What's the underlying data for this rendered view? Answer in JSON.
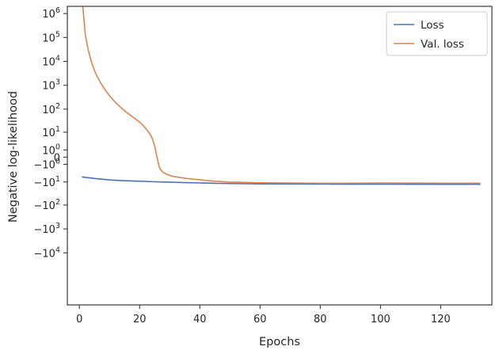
{
  "chart_data": {
    "type": "line",
    "title": "",
    "xlabel": "Epochs",
    "ylabel": "Negative log-likelihood",
    "xlim": [
      -4,
      137
    ],
    "xticks": [
      0,
      20,
      40,
      60,
      80,
      100,
      120
    ],
    "xtick_labels": [
      "0",
      "20",
      "40",
      "60",
      "80",
      "100",
      "120"
    ],
    "yscale": "symlog",
    "ylim": [
      -1500000,
      2000000
    ],
    "yticks": [
      {
        "value": 1000000,
        "base": "10",
        "exp": "6"
      },
      {
        "value": 100000,
        "base": "10",
        "exp": "5"
      },
      {
        "value": 10000,
        "base": "10",
        "exp": "4"
      },
      {
        "value": 1000,
        "base": "10",
        "exp": "3"
      },
      {
        "value": 100,
        "base": "10",
        "exp": "2"
      },
      {
        "value": 10,
        "base": "10",
        "exp": "1"
      },
      {
        "value": 1,
        "base": "10",
        "exp": "0"
      },
      {
        "value": 0,
        "base": "0",
        "exp": ""
      },
      {
        "value": -1,
        "base": "−10",
        "exp": "0"
      },
      {
        "value": -10,
        "base": "−10",
        "exp": "1"
      },
      {
        "value": -100,
        "base": "−10",
        "exp": "2"
      },
      {
        "value": -1000,
        "base": "−10",
        "exp": "3"
      },
      {
        "value": -10000,
        "base": "−10",
        "exp": "4"
      }
    ],
    "grid": false,
    "legend_position": "top-right",
    "series": [
      {
        "name": "Loss",
        "color": "#4c72b0",
        "x": [
          1,
          5,
          10,
          15,
          20,
          25,
          30,
          35,
          40,
          45,
          50,
          60,
          70,
          80,
          90,
          100,
          110,
          120,
          133
        ],
        "y": [
          -5.8,
          -6.8,
          -8.0,
          -8.7,
          -9.2,
          -9.7,
          -10.2,
          -10.6,
          -11.0,
          -11.4,
          -11.7,
          -12.1,
          -12.3,
          -12.4,
          -12.5,
          -12.5,
          -12.6,
          -12.6,
          -12.7
        ]
      },
      {
        "name": "Val. loss",
        "color": "#dd8452",
        "x": [
          1,
          2,
          3,
          4,
          5,
          6,
          7,
          8,
          9,
          10,
          12,
          14,
          16,
          18,
          20,
          21,
          22,
          23,
          24,
          25,
          25.5,
          26,
          26.5,
          27,
          27.5,
          28,
          29,
          30,
          31,
          32,
          34,
          36,
          38,
          40,
          42,
          45,
          50,
          60,
          70,
          80,
          90,
          100,
          110,
          120,
          133
        ],
        "y": [
          3000000,
          120000,
          28000,
          9500,
          4200,
          2200,
          1300,
          820,
          540,
          370,
          190,
          110,
          68,
          44,
          28,
          21,
          15,
          10,
          6,
          2,
          0.4,
          -0.3,
          -1.5,
          -2.4,
          -3.0,
          -3.5,
          -4.2,
          -4.8,
          -5.3,
          -5.7,
          -6.3,
          -6.9,
          -7.4,
          -7.8,
          -8.4,
          -9.2,
          -10.1,
          -10.8,
          -11.0,
          -11.3,
          -11.3,
          -11.1,
          -11.2,
          -11.3,
          -11.3
        ]
      }
    ]
  }
}
